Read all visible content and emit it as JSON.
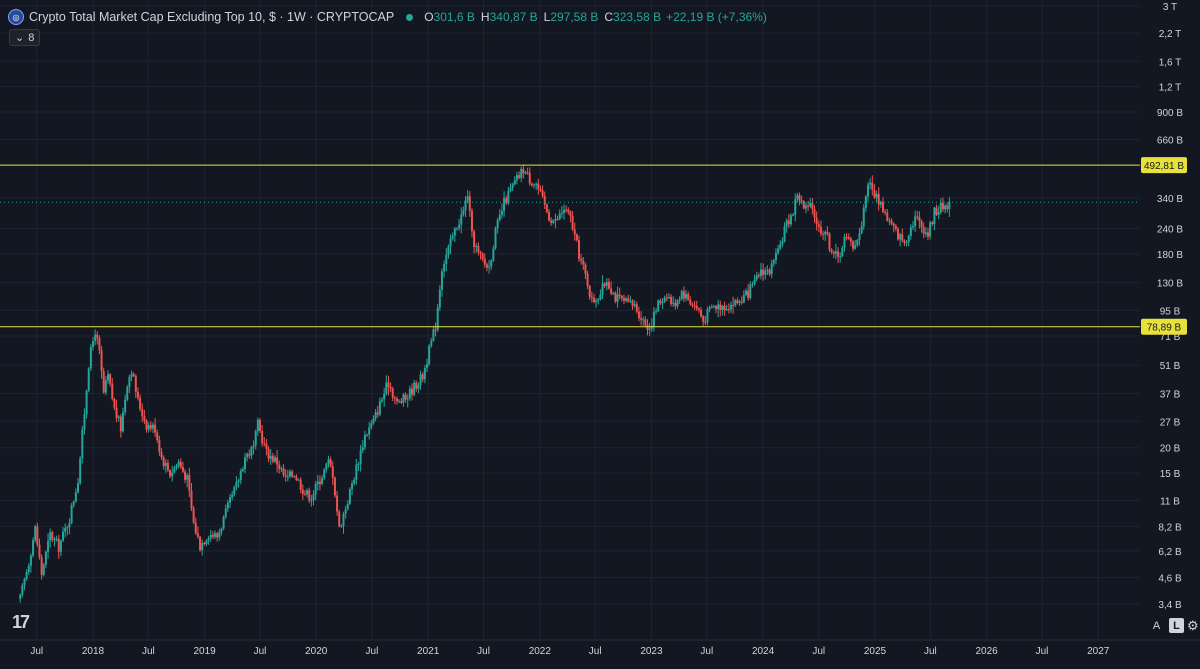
{
  "header": {
    "title": "Crypto Total Market Cap Excluding Top 10, $ · 1W · CRYPTOCAP",
    "open_label": "O",
    "open": "301,6 B",
    "high_label": "H",
    "high": "340,87 B",
    "low_label": "L",
    "low": "297,58 B",
    "close_label": "C",
    "close": "323,58 B",
    "change": "+22,19 B (+7,36%)",
    "indicator_count": "8"
  },
  "controls": {
    "auto_label": "A",
    "log_label": "L"
  },
  "colors": {
    "up": "#26a69a",
    "down": "#ef5350",
    "level": "#e7e13b",
    "grid": "#1f2330",
    "text": "#d1d4dc"
  },
  "chart_data": {
    "type": "candlestick",
    "scale": "log",
    "y_unit": "USD",
    "y_ticks": [
      "3 T",
      "2,2 T",
      "1,6 T",
      "1,2 T",
      "900 B",
      "660 B",
      "340 B",
      "240 B",
      "180 B",
      "130 B",
      "95 B",
      "71 B",
      "51 B",
      "37 B",
      "27 B",
      "20 B",
      "15 B",
      "11 B",
      "8,2 B",
      "6,2 B",
      "4,6 B",
      "3,4 B"
    ],
    "y_tick_values": [
      3000,
      2200,
      1600,
      1200,
      900,
      660,
      340,
      240,
      180,
      130,
      95,
      71,
      51,
      37,
      27,
      20,
      15,
      11,
      8.2,
      6.2,
      4.6,
      3.4
    ],
    "x_ticks": [
      "Jul",
      "2018",
      "Jul",
      "2019",
      "Jul",
      "2020",
      "Jul",
      "2021",
      "Jul",
      "2022",
      "Jul",
      "2023",
      "Jul",
      "2024",
      "Jul",
      "2025",
      "Jul",
      "2026",
      "Jul",
      "2027"
    ],
    "x_tick_dates": [
      "2017-07-01",
      "2018-01-01",
      "2018-07-01",
      "2019-01-01",
      "2019-07-01",
      "2020-01-01",
      "2020-07-01",
      "2021-01-01",
      "2021-07-01",
      "2022-01-01",
      "2022-07-01",
      "2023-01-01",
      "2023-07-01",
      "2024-01-01",
      "2024-07-01",
      "2025-01-01",
      "2025-07-01",
      "2026-01-01",
      "2026-07-01",
      "2027-01-01"
    ],
    "horizontal_levels": [
      {
        "value": 492.81,
        "label": "492,81 B"
      },
      {
        "value": 78.89,
        "label": "78,89 B"
      }
    ],
    "last_price": 323.58,
    "price_path": [
      [
        "2017-05-08",
        3.6
      ],
      [
        "2017-06-05",
        5.5
      ],
      [
        "2017-06-26",
        8.0
      ],
      [
        "2017-07-17",
        4.8
      ],
      [
        "2017-08-14",
        7.5
      ],
      [
        "2017-09-11",
        6.5
      ],
      [
        "2017-10-16",
        9.0
      ],
      [
        "2017-11-13",
        14
      ],
      [
        "2017-12-04",
        30
      ],
      [
        "2017-12-18",
        52
      ],
      [
        "2018-01-08",
        76
      ],
      [
        "2018-01-22",
        58
      ],
      [
        "2018-02-05",
        37
      ],
      [
        "2018-02-19",
        45
      ],
      [
        "2018-03-12",
        31
      ],
      [
        "2018-04-02",
        25
      ],
      [
        "2018-04-23",
        42
      ],
      [
        "2018-05-07",
        49
      ],
      [
        "2018-05-28",
        34
      ],
      [
        "2018-06-25",
        26
      ],
      [
        "2018-07-23",
        25
      ],
      [
        "2018-08-13",
        18
      ],
      [
        "2018-09-10",
        15
      ],
      [
        "2018-10-08",
        17
      ],
      [
        "2018-11-05",
        14
      ],
      [
        "2018-11-26",
        8.5
      ],
      [
        "2018-12-17",
        6.6
      ],
      [
        "2019-01-14",
        7.6
      ],
      [
        "2019-02-11",
        7.3
      ],
      [
        "2019-03-11",
        9.5
      ],
      [
        "2019-04-15",
        13
      ],
      [
        "2019-05-13",
        18
      ],
      [
        "2019-06-10",
        20
      ],
      [
        "2019-06-24",
        26
      ],
      [
        "2019-07-22",
        19
      ],
      [
        "2019-08-26",
        17
      ],
      [
        "2019-09-23",
        14
      ],
      [
        "2019-10-21",
        15
      ],
      [
        "2019-11-25",
        12
      ],
      [
        "2019-12-16",
        11.5
      ],
      [
        "2020-01-13",
        14
      ],
      [
        "2020-02-10",
        17
      ],
      [
        "2020-02-24",
        15
      ],
      [
        "2020-03-16",
        8
      ],
      [
        "2020-04-13",
        11
      ],
      [
        "2020-05-11",
        16
      ],
      [
        "2020-06-08",
        23
      ],
      [
        "2020-07-06",
        27
      ],
      [
        "2020-08-03",
        35
      ],
      [
        "2020-08-24",
        42
      ],
      [
        "2020-09-21",
        33
      ],
      [
        "2020-10-19",
        35
      ],
      [
        "2020-11-16",
        40
      ],
      [
        "2020-12-14",
        45
      ],
      [
        "2021-01-04",
        60
      ],
      [
        "2021-01-25",
        80
      ],
      [
        "2021-02-15",
        155
      ],
      [
        "2021-03-08",
        190
      ],
      [
        "2021-04-05",
        250
      ],
      [
        "2021-04-26",
        290
      ],
      [
        "2021-05-10",
        360
      ],
      [
        "2021-05-24",
        220
      ],
      [
        "2021-06-14",
        180
      ],
      [
        "2021-07-05",
        160
      ],
      [
        "2021-07-19",
        155
      ],
      [
        "2021-08-09",
        230
      ],
      [
        "2021-09-06",
        320
      ],
      [
        "2021-09-27",
        370
      ],
      [
        "2021-10-18",
        420
      ],
      [
        "2021-11-08",
        470
      ],
      [
        "2021-11-29",
        420
      ],
      [
        "2021-12-20",
        400
      ],
      [
        "2022-01-10",
        330
      ],
      [
        "2022-01-31",
        275
      ],
      [
        "2022-02-21",
        260
      ],
      [
        "2022-03-21",
        300
      ],
      [
        "2022-04-11",
        270
      ],
      [
        "2022-05-09",
        180
      ],
      [
        "2022-06-06",
        130
      ],
      [
        "2022-06-20",
        105
      ],
      [
        "2022-07-18",
        115
      ],
      [
        "2022-08-08",
        135
      ],
      [
        "2022-09-05",
        110
      ],
      [
        "2022-10-10",
        103
      ],
      [
        "2022-11-07",
        100
      ],
      [
        "2022-12-05",
        85
      ],
      [
        "2022-12-26",
        78
      ],
      [
        "2023-01-23",
        102
      ],
      [
        "2023-02-20",
        115
      ],
      [
        "2023-03-13",
        100
      ],
      [
        "2023-04-10",
        118
      ],
      [
        "2023-05-08",
        105
      ],
      [
        "2023-06-05",
        95
      ],
      [
        "2023-06-19",
        84
      ],
      [
        "2023-07-17",
        98
      ],
      [
        "2023-08-14",
        100
      ],
      [
        "2023-09-11",
        101
      ],
      [
        "2023-10-09",
        104
      ],
      [
        "2023-11-06",
        112
      ],
      [
        "2023-12-04",
        128
      ],
      [
        "2023-12-25",
        150
      ],
      [
        "2024-01-22",
        148
      ],
      [
        "2024-02-19",
        180
      ],
      [
        "2024-03-11",
        240
      ],
      [
        "2024-04-08",
        290
      ],
      [
        "2024-04-22",
        360
      ],
      [
        "2024-05-13",
        300
      ],
      [
        "2024-06-10",
        305
      ],
      [
        "2024-07-01",
        240
      ],
      [
        "2024-07-22",
        235
      ],
      [
        "2024-08-05",
        200
      ],
      [
        "2024-09-02",
        170
      ],
      [
        "2024-09-23",
        215
      ],
      [
        "2024-10-21",
        200
      ],
      [
        "2024-11-11",
        220
      ],
      [
        "2024-11-25",
        300
      ],
      [
        "2024-12-09",
        410
      ],
      [
        "2024-12-23",
        370
      ],
      [
        "2025-01-20",
        320
      ],
      [
        "2025-02-10",
        270
      ],
      [
        "2025-03-10",
        230
      ],
      [
        "2025-04-07",
        205
      ],
      [
        "2025-05-12",
        275
      ],
      [
        "2025-06-09",
        240
      ],
      [
        "2025-06-23",
        225
      ],
      [
        "2025-07-14",
        290
      ],
      [
        "2025-08-04",
        305
      ],
      [
        "2025-08-25",
        315
      ],
      [
        "2025-09-08",
        323.58
      ]
    ]
  }
}
